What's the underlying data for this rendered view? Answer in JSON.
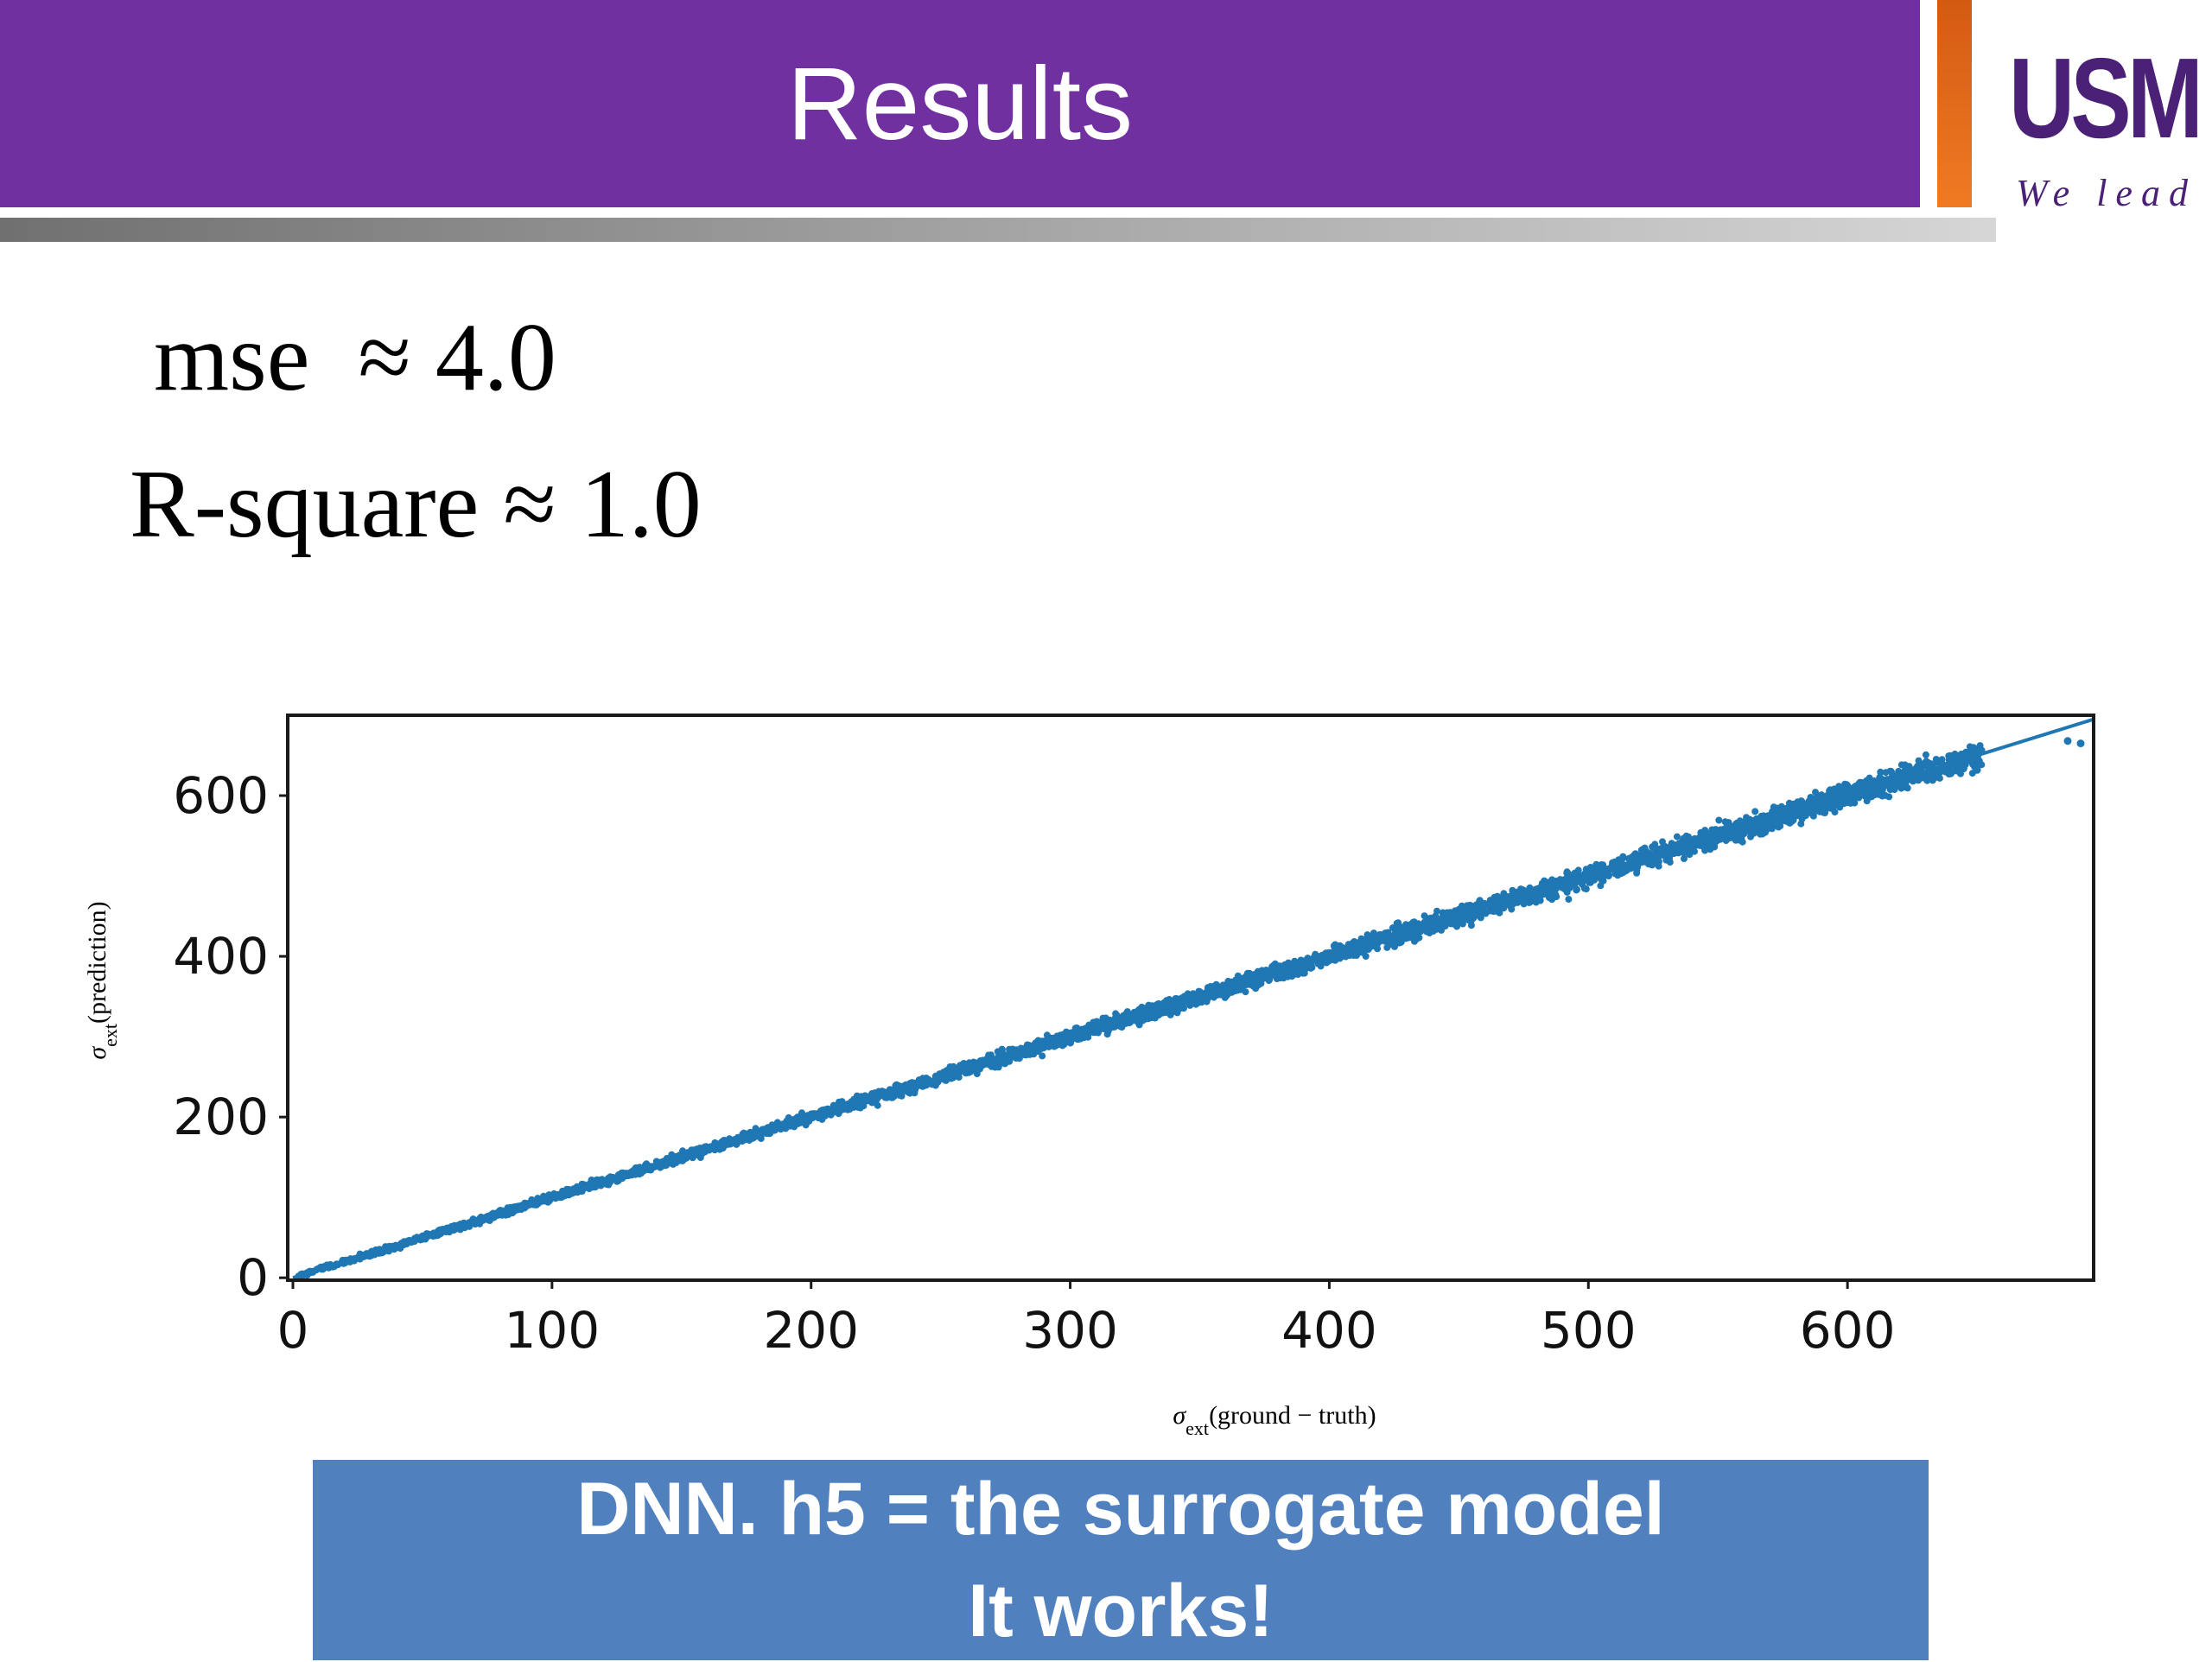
{
  "header": {
    "title": "Results",
    "logo_text": "USM",
    "logo_tagline": "We lead"
  },
  "metrics": {
    "mse_text": "mse  ≈ 4.0",
    "r2_text": "R-square ≈ 1.0"
  },
  "callout": {
    "line1": "DNN. h5 = the surrogate model",
    "line2": "It works!"
  },
  "colors": {
    "title_bar": "#7030a0",
    "points": "#1f77b4",
    "callout_bg": "#5080bd",
    "logo_orange": "#e8650a"
  },
  "chart_data": {
    "type": "scatter",
    "title": "",
    "xlabel": "σext(ground − truth)",
    "ylabel": "σext(prediction)",
    "xlim": [
      -2,
      695
    ],
    "ylim": [
      -3,
      700
    ],
    "xticks": [
      0,
      100,
      200,
      300,
      400,
      500,
      600
    ],
    "yticks": [
      0,
      200,
      400,
      600
    ],
    "grid": false,
    "legend": "none",
    "series": [
      {
        "marker": "dots",
        "note_points": [
          [
            20,
            19
          ],
          [
            50,
            49
          ],
          [
            80,
            79
          ],
          [
            100,
            101
          ],
          [
            130,
            129
          ],
          [
            150,
            151
          ],
          [
            180,
            179
          ],
          [
            200,
            201
          ],
          [
            230,
            228
          ],
          [
            250,
            252
          ],
          [
            280,
            279
          ],
          [
            300,
            300
          ],
          [
            330,
            329
          ],
          [
            350,
            352
          ],
          [
            380,
            378
          ],
          [
            400,
            401
          ],
          [
            420,
            420
          ],
          [
            450,
            452
          ],
          [
            480,
            478
          ],
          [
            500,
            502
          ],
          [
            520,
            522
          ],
          [
            550,
            552
          ],
          [
            570,
            575
          ],
          [
            600,
            598
          ],
          [
            620,
            622
          ],
          [
            650,
            632
          ],
          [
            685,
            668
          ],
          [
            690,
            665
          ]
        ]
      },
      {
        "type": "line",
        "x": [
          0,
          695
        ],
        "y": [
          0,
          695
        ]
      }
    ]
  }
}
